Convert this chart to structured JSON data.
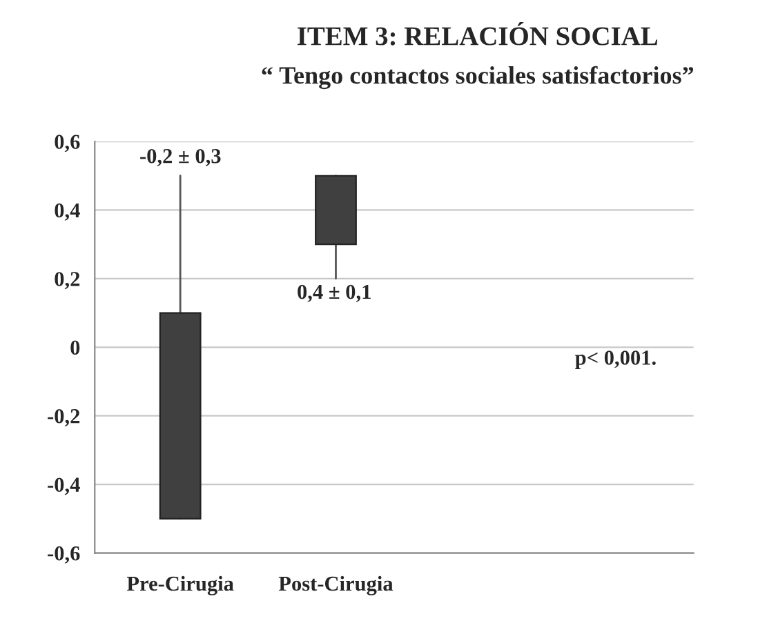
{
  "chart_data": {
    "type": "candlestick",
    "title": "ITEM 3: RELACIÓN SOCIAL",
    "subtitle": "“ Tengo contactos sociales satisfactorios”",
    "categories": [
      "Pre-Cirugia",
      "Post-Cirugia"
    ],
    "ohlc": [
      [
        -0.5,
        0.5,
        -0.5,
        0.1
      ],
      [
        0.3,
        0.5,
        0.2,
        0.5
      ]
    ],
    "colors": [
      "#404040",
      "#404040"
    ],
    "ylim": [
      -0.6,
      0.6
    ],
    "yticks": [
      {
        "value": -0.6,
        "label": "-0,6"
      },
      {
        "value": -0.4,
        "label": "-0,4"
      },
      {
        "value": -0.2,
        "label": "-0,2"
      },
      0,
      {
        "value": 0.2,
        "label": "0,2"
      },
      {
        "value": 0.4,
        "label": "0,4"
      },
      {
        "value": 0.6,
        "label": "0,6"
      }
    ],
    "grid": "y",
    "annotations": [
      "-0,2 ± 0,3",
      "0,4 ± 0,1",
      "p< 0,001."
    ]
  }
}
